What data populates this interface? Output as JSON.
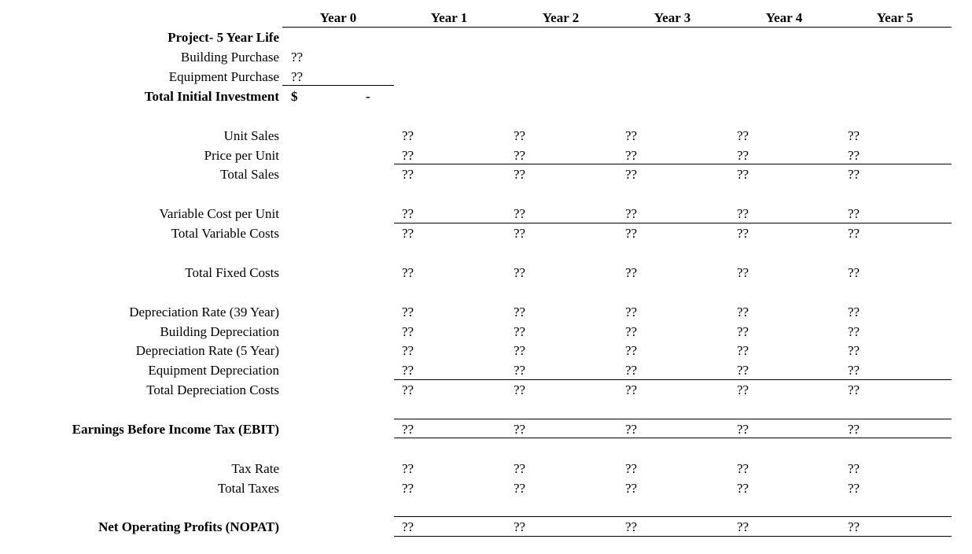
{
  "header": {
    "years": [
      "Year 0",
      "Year 1",
      "Year 2",
      "Year 3",
      "Year 4",
      "Year 5"
    ]
  },
  "section_title": "Project- 5 Year Life",
  "initial": {
    "building_purchase": {
      "label": "Building Purchase",
      "value": "??"
    },
    "equipment_purchase": {
      "label": "Equipment Purchase",
      "value": "??"
    },
    "total": {
      "label": "Total Initial Investment",
      "currency": "$",
      "value": "-"
    }
  },
  "rows": [
    {
      "label": "Unit Sales",
      "values": [
        "??",
        "??",
        "??",
        "??",
        "??"
      ]
    },
    {
      "label": "Price per Unit",
      "values": [
        "??",
        "??",
        "??",
        "??",
        "??"
      ]
    },
    {
      "label": "Total Sales",
      "values": [
        "??",
        "??",
        "??",
        "??",
        "??"
      ]
    },
    {
      "label": "Variable Cost per Unit",
      "values": [
        "??",
        "??",
        "??",
        "??",
        "??"
      ]
    },
    {
      "label": "Total Variable Costs",
      "values": [
        "??",
        "??",
        "??",
        "??",
        "??"
      ]
    },
    {
      "label": "Total Fixed Costs",
      "values": [
        "??",
        "??",
        "??",
        "??",
        "??"
      ]
    },
    {
      "label": "Depreciation Rate (39 Year)",
      "values": [
        "??",
        "??",
        "??",
        "??",
        "??"
      ]
    },
    {
      "label": "Building Depreciation",
      "values": [
        "??",
        "??",
        "??",
        "??",
        "??"
      ]
    },
    {
      "label": "Depreciation Rate (5 Year)",
      "values": [
        "??",
        "??",
        "??",
        "??",
        "??"
      ]
    },
    {
      "label": "Equipment Depreciation",
      "values": [
        "??",
        "??",
        "??",
        "??",
        "??"
      ]
    },
    {
      "label": "Total Depreciation Costs",
      "values": [
        "??",
        "??",
        "??",
        "??",
        "??"
      ]
    },
    {
      "label": "Earnings Before Income Tax (EBIT)",
      "values": [
        "??",
        "??",
        "??",
        "??",
        "??"
      ],
      "bold": true
    },
    {
      "label": "Tax Rate",
      "values": [
        "??",
        "??",
        "??",
        "??",
        "??"
      ]
    },
    {
      "label": "Total Taxes",
      "values": [
        "??",
        "??",
        "??",
        "??",
        "??"
      ]
    },
    {
      "label": "Net Operating Profits (NOPAT)",
      "values": [
        "??",
        "??",
        "??",
        "??",
        "??"
      ],
      "bold": true
    }
  ]
}
